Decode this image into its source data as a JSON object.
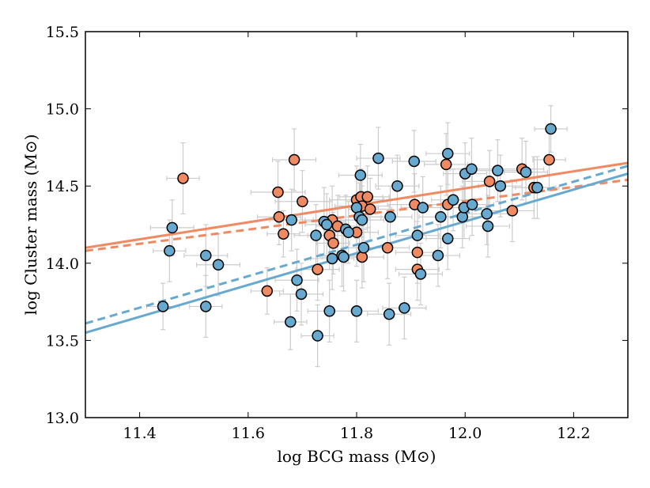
{
  "chart_data": {
    "type": "scatter",
    "xlabel": "log BCG mass (M⊙)",
    "ylabel": "log Cluster mass (M⊙)",
    "xlim": [
      11.3,
      12.3
    ],
    "ylim": [
      13.0,
      15.5
    ],
    "xticks": [
      "11.4",
      "11.6",
      "11.8",
      "12.0",
      "12.2"
    ],
    "xtick_values": [
      11.4,
      11.6,
      11.8,
      12.0,
      12.2
    ],
    "yticks": [
      "13.0",
      "13.5",
      "14.0",
      "14.5",
      "15.0",
      "15.5"
    ],
    "ytick_values": [
      13.0,
      13.5,
      14.0,
      14.5,
      15.0,
      15.5
    ],
    "grid": false,
    "colors": {
      "orange": "#ef8a62",
      "blue": "#67a9cf",
      "errorbar": "#cccccc",
      "edge": "#000000"
    },
    "series": [
      {
        "name": "orange",
        "color": "#ef8a62",
        "points": [
          [
            11.48,
            14.55,
            0.03,
            0.23
          ],
          [
            11.635,
            13.82,
            0.03,
            0.15
          ],
          [
            11.655,
            14.46,
            0.05,
            0.2
          ],
          [
            11.657,
            14.3,
            0.04,
            0.18
          ],
          [
            11.665,
            14.19,
            0.03,
            0.15
          ],
          [
            11.685,
            14.67,
            0.04,
            0.2
          ],
          [
            11.7,
            14.4,
            0.05,
            0.2
          ],
          [
            11.728,
            13.96,
            0.04,
            0.2
          ],
          [
            11.75,
            14.18,
            0.04,
            0.22
          ],
          [
            11.755,
            14.28,
            0.05,
            0.22
          ],
          [
            11.757,
            14.13,
            0.03,
            0.2
          ],
          [
            11.765,
            14.24,
            0.04,
            0.2
          ],
          [
            11.8,
            14.41,
            0.05,
            0.22
          ],
          [
            11.8,
            14.2,
            0.04,
            0.22
          ],
          [
            11.808,
            14.43,
            0.04,
            0.18
          ],
          [
            11.81,
            14.37,
            0.05,
            0.2
          ],
          [
            11.82,
            14.43,
            0.04,
            0.2
          ],
          [
            11.825,
            14.35,
            0.04,
            0.2
          ],
          [
            11.81,
            14.04,
            0.04,
            0.2
          ],
          [
            11.857,
            14.1,
            0.04,
            0.2
          ],
          [
            11.907,
            14.38,
            0.05,
            0.2
          ],
          [
            11.912,
            14.07,
            0.04,
            0.2
          ],
          [
            11.912,
            13.96,
            0.04,
            0.2
          ],
          [
            11.965,
            14.64,
            0.04,
            0.2
          ],
          [
            11.968,
            14.38,
            0.05,
            0.2
          ],
          [
            12.045,
            14.53,
            0.05,
            0.2
          ],
          [
            12.087,
            14.34,
            0.04,
            0.2
          ],
          [
            12.105,
            14.61,
            0.04,
            0.2
          ],
          [
            12.127,
            14.49,
            0.04,
            0.2
          ],
          [
            12.155,
            14.67,
            0.03,
            0.2
          ]
        ]
      },
      {
        "name": "blue",
        "color": "#67a9cf",
        "points": [
          [
            11.443,
            13.72,
            0.03,
            0.15
          ],
          [
            11.455,
            14.08,
            0.03,
            0.2
          ],
          [
            11.46,
            14.23,
            0.04,
            0.18
          ],
          [
            11.522,
            14.05,
            0.04,
            0.2
          ],
          [
            11.522,
            13.72,
            0.03,
            0.2
          ],
          [
            11.545,
            13.99,
            0.04,
            0.2
          ],
          [
            11.678,
            13.62,
            0.03,
            0.18
          ],
          [
            11.68,
            14.28,
            0.04,
            0.2
          ],
          [
            11.69,
            13.89,
            0.04,
            0.2
          ],
          [
            11.698,
            13.8,
            0.04,
            0.2
          ],
          [
            11.725,
            14.18,
            0.04,
            0.2
          ],
          [
            11.728,
            13.53,
            0.03,
            0.2
          ],
          [
            11.74,
            14.27,
            0.04,
            0.22
          ],
          [
            11.745,
            14.25,
            0.04,
            0.2
          ],
          [
            11.75,
            13.69,
            0.04,
            0.2
          ],
          [
            11.755,
            14.03,
            0.04,
            0.2
          ],
          [
            11.773,
            14.05,
            0.04,
            0.2
          ],
          [
            11.776,
            14.04,
            0.04,
            0.22
          ],
          [
            11.78,
            14.22,
            0.04,
            0.22
          ],
          [
            11.785,
            14.2,
            0.04,
            0.2
          ],
          [
            11.8,
            14.36,
            0.04,
            0.2
          ],
          [
            11.8,
            13.69,
            0.04,
            0.2
          ],
          [
            11.805,
            14.3,
            0.04,
            0.22
          ],
          [
            11.807,
            14.57,
            0.04,
            0.2
          ],
          [
            11.81,
            14.28,
            0.04,
            0.22
          ],
          [
            11.813,
            14.1,
            0.04,
            0.22
          ],
          [
            11.84,
            14.68,
            0.04,
            0.2
          ],
          [
            11.86,
            13.67,
            0.04,
            0.2
          ],
          [
            11.862,
            14.3,
            0.04,
            0.2
          ],
          [
            11.875,
            14.5,
            0.04,
            0.2
          ],
          [
            11.888,
            13.71,
            0.04,
            0.2
          ],
          [
            11.906,
            14.66,
            0.04,
            0.2
          ],
          [
            11.912,
            14.18,
            0.04,
            0.2
          ],
          [
            11.918,
            13.93,
            0.04,
            0.2
          ],
          [
            11.922,
            14.36,
            0.04,
            0.2
          ],
          [
            11.95,
            14.05,
            0.04,
            0.2
          ],
          [
            11.955,
            14.3,
            0.04,
            0.2
          ],
          [
            11.968,
            14.71,
            0.04,
            0.2
          ],
          [
            11.968,
            14.16,
            0.04,
            0.2
          ],
          [
            11.978,
            14.41,
            0.04,
            0.2
          ],
          [
            11.995,
            14.3,
            0.04,
            0.2
          ],
          [
            11.998,
            14.36,
            0.04,
            0.2
          ],
          [
            12.0,
            14.58,
            0.04,
            0.2
          ],
          [
            12.012,
            14.61,
            0.04,
            0.2
          ],
          [
            12.013,
            14.38,
            0.04,
            0.2
          ],
          [
            12.04,
            14.32,
            0.04,
            0.2
          ],
          [
            12.042,
            14.24,
            0.04,
            0.2
          ],
          [
            12.06,
            14.6,
            0.04,
            0.2
          ],
          [
            12.065,
            14.5,
            0.04,
            0.2
          ],
          [
            12.112,
            14.59,
            0.04,
            0.2
          ],
          [
            12.133,
            14.49,
            0.04,
            0.2
          ],
          [
            12.158,
            14.87,
            0.03,
            0.15
          ]
        ]
      }
    ],
    "fit_lines": [
      {
        "name": "orange-solid",
        "color": "#ef8a62",
        "style": "solid",
        "x": [
          11.3,
          12.3
        ],
        "y": [
          14.1,
          14.65
        ]
      },
      {
        "name": "orange-dashed",
        "color": "#ef8a62",
        "style": "dashed",
        "x": [
          11.3,
          12.3
        ],
        "y": [
          14.08,
          14.54
        ]
      },
      {
        "name": "blue-solid",
        "color": "#67a9cf",
        "style": "solid",
        "x": [
          11.3,
          12.3
        ],
        "y": [
          13.55,
          14.58
        ]
      },
      {
        "name": "blue-dashed",
        "color": "#67a9cf",
        "style": "dashed",
        "x": [
          11.3,
          12.3
        ],
        "y": [
          13.61,
          14.63
        ]
      }
    ]
  }
}
